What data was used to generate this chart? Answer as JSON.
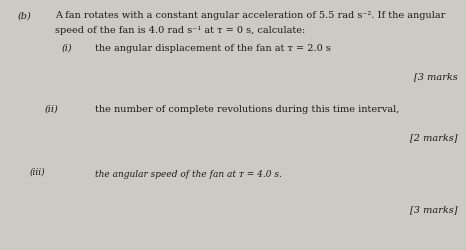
{
  "bg_color": "#cccbc3",
  "text_color": "#1a1a1a",
  "figsize": [
    4.66,
    2.5
  ],
  "dpi": 100,
  "part_b_label": "(b)",
  "intro_line1": "A fan rotates with a constant angular acceleration of 5.5 rad s⁻². If the angular",
  "intro_line2": "speed of the fan is 4.0 rad s⁻¹ at ᴛ = 0 s, calculate:",
  "part_i_label": "(i)",
  "part_i_text": "the angular displacement of the fan at ᴛ = 2.0 s",
  "marks_i": "[3 marks",
  "part_ii_label": "(ii)",
  "part_ii_text": "the number of complete revolutions during this time interval,",
  "marks_ii": "[2 marks]",
  "part_iii_label": "(iii)",
  "part_iii_text": "the angular speed of the fan at ᴛ = 4.0 s.",
  "marks_iii": "[3 marks]",
  "font_size_main": 7.0,
  "font_size_label": 7.0
}
